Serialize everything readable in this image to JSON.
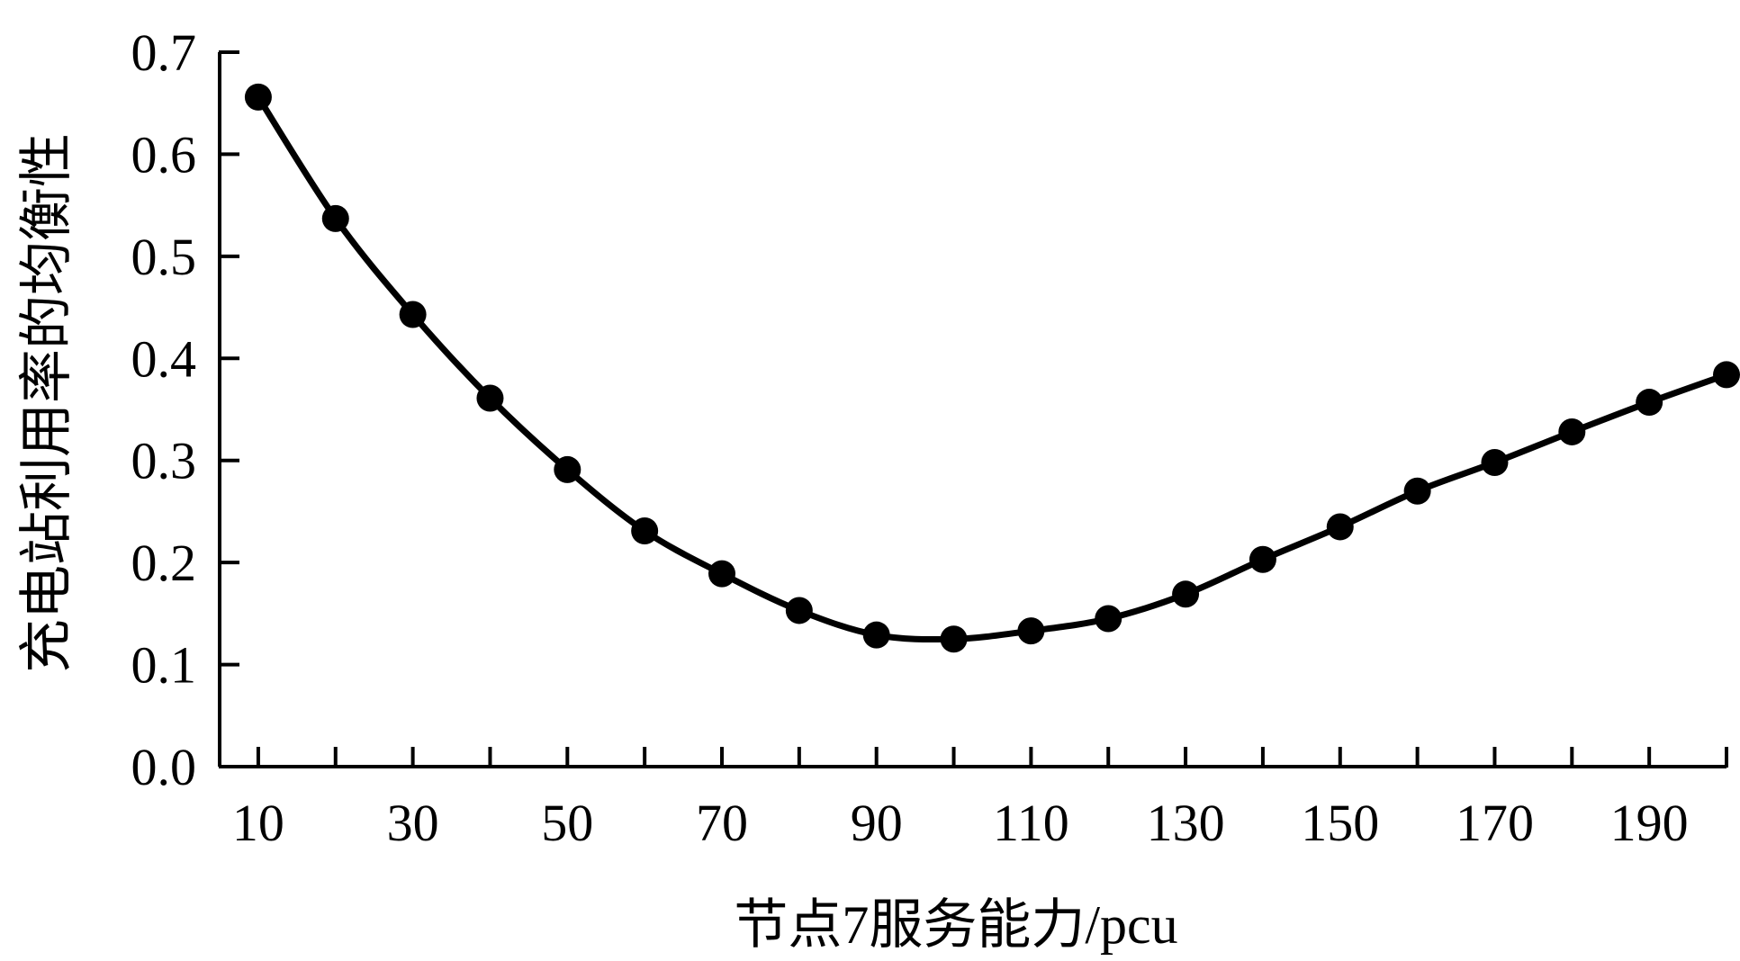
{
  "chart_data": {
    "type": "line",
    "title": "",
    "xlabel": "节点7服务能力/pcu",
    "ylabel": "充电站利用率的均衡性",
    "x": [
      10,
      20,
      30,
      40,
      50,
      60,
      70,
      80,
      90,
      100,
      110,
      120,
      130,
      140,
      150,
      160,
      170,
      180,
      190,
      200
    ],
    "series": [
      {
        "values": [
          0.656,
          0.537,
          0.443,
          0.361,
          0.291,
          0.231,
          0.189,
          0.153,
          0.129,
          0.125,
          0.133,
          0.145,
          0.169,
          0.203,
          0.235,
          0.27,
          0.298,
          0.328,
          0.357,
          0.384
        ]
      }
    ],
    "xlim": [
      5,
      200
    ],
    "ylim": [
      0.0,
      0.7
    ],
    "xticks": [
      "10",
      "30",
      "50",
      "70",
      "90",
      "110",
      "130",
      "150",
      "170",
      "190"
    ],
    "yticks": [
      "0.0",
      "0.1",
      "0.2",
      "0.3",
      "0.4",
      "0.5",
      "0.6",
      "0.7"
    ],
    "grid": false,
    "legend": "none",
    "colors": {
      "line": "#000000",
      "marker": "#000000"
    }
  }
}
